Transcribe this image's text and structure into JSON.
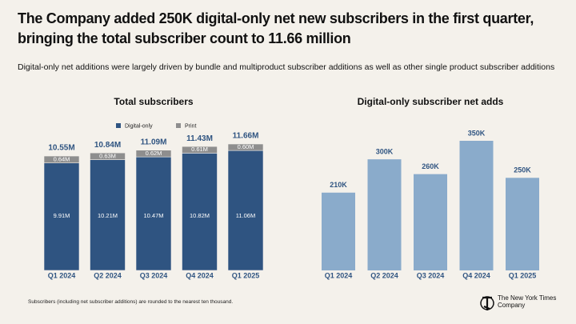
{
  "title": "The Company added 250K digital-only net new subscribers in the first quarter, bringing the total subscriber count to 11.66 million",
  "subtitle": "Digital-only net additions were largely driven by bundle and multiproduct subscriber additions as well as other single product subscriber additions",
  "footnote": "Subscribers (including net subscriber additions) are rounded to the nearest ten thousand.",
  "logo": {
    "line1": "The New York Times",
    "line2": "Company"
  },
  "chart_data": [
    {
      "type": "stacked-bar",
      "title": "Total subscribers",
      "categories": [
        "Q1 2024",
        "Q2 2024",
        "Q3 2024",
        "Q4 2024",
        "Q1 2025"
      ],
      "series": [
        {
          "name": "Digital-only",
          "color": "#2f5481",
          "values": [
            9.91,
            10.21,
            10.47,
            10.82,
            11.06
          ],
          "value_labels": [
            "9.91M",
            "10.21M",
            "10.47M",
            "10.82M",
            "11.06M"
          ]
        },
        {
          "name": "Print",
          "color": "#8e8e8e",
          "values": [
            0.64,
            0.63,
            0.62,
            0.61,
            0.6
          ],
          "value_labels": [
            "0.64M",
            "0.63M",
            "0.62M",
            "0.61M",
            "0.60M"
          ]
        }
      ],
      "totals": {
        "values": [
          10.55,
          10.84,
          11.09,
          11.43,
          11.66
        ],
        "value_labels": [
          "10.55M",
          "10.84M",
          "11.09M",
          "11.43M",
          "11.66M"
        ]
      }
    },
    {
      "type": "bar",
      "title": "Digital-only subscriber net adds",
      "categories": [
        "Q1 2024",
        "Q2 2024",
        "Q3 2024",
        "Q4 2024",
        "Q1 2025"
      ],
      "values": [
        210,
        300,
        260,
        350,
        250
      ],
      "value_labels": [
        "210K",
        "300K",
        "260K",
        "350K",
        "250K"
      ],
      "color": "#8aabcb"
    }
  ]
}
